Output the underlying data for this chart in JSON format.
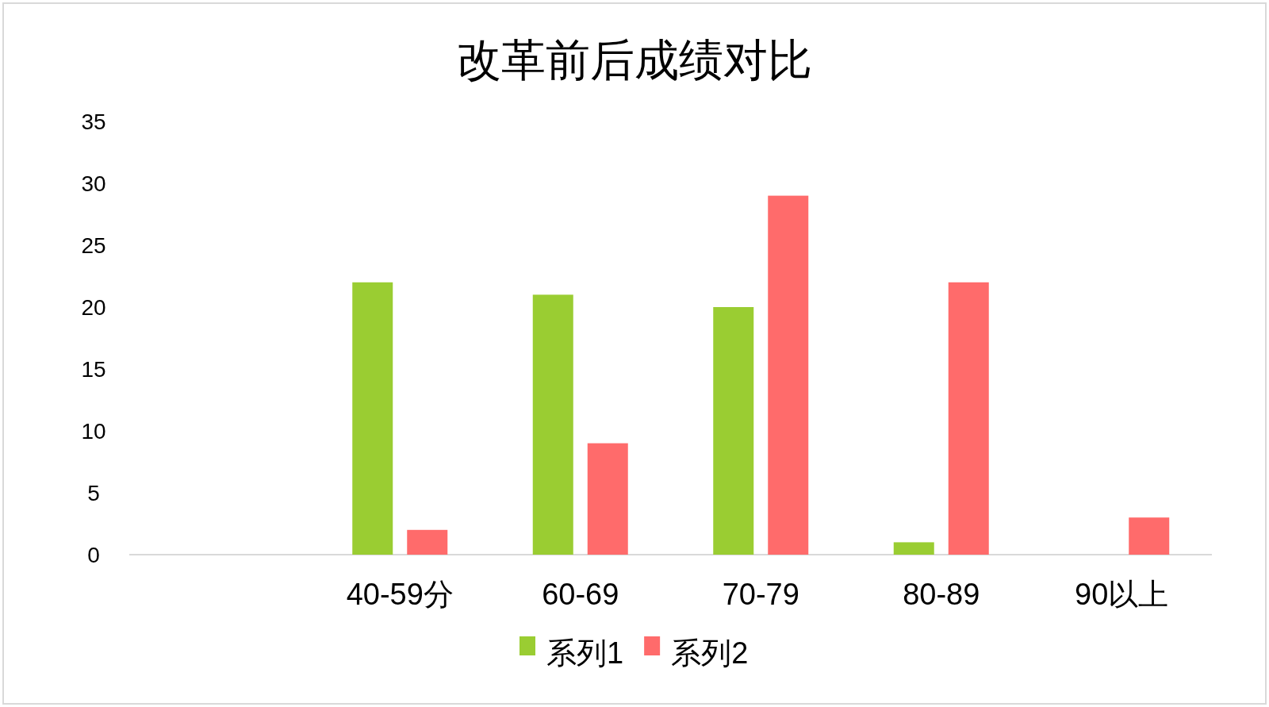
{
  "chart_data": {
    "type": "bar",
    "title": "改革前后成绩对比",
    "categories": [
      null,
      "40-59分",
      "60-69",
      "70-79",
      "80-89",
      "90以上"
    ],
    "series": [
      {
        "name": "系列1",
        "color": "#9acd32",
        "values": [
          null,
          22,
          21,
          20,
          1,
          null
        ]
      },
      {
        "name": "系列2",
        "color": "#ff6b6b",
        "values": [
          null,
          2,
          9,
          29,
          22,
          3
        ]
      }
    ],
    "ylim": [
      0,
      35
    ],
    "yticks": [
      0,
      5,
      10,
      15,
      20,
      25,
      30,
      35
    ],
    "grid": false,
    "legend": "bottom"
  }
}
